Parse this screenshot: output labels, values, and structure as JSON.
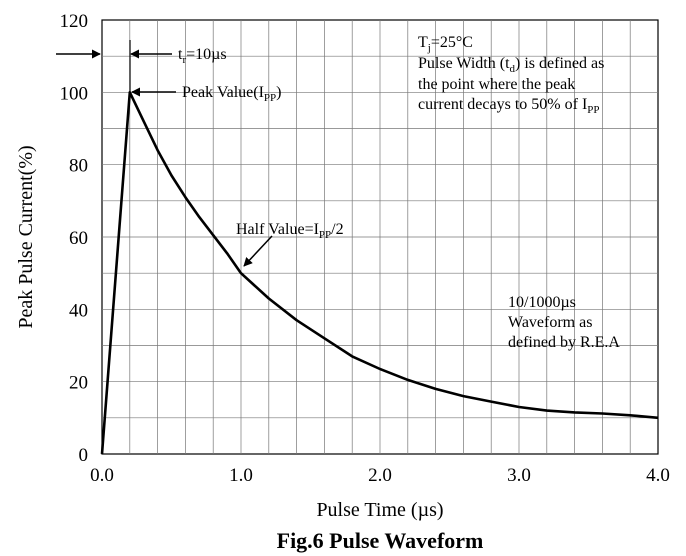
{
  "chart_data": {
    "type": "line",
    "title": "Fig.6 Pulse Waveform",
    "xlabel": "Pulse Time (µs)",
    "ylabel": "Peak Pulse Current(%)",
    "xlim": [
      0,
      4
    ],
    "ylim": [
      0,
      120
    ],
    "grid": true,
    "x_tick_labels": [
      "0.0",
      "1.0",
      "2.0",
      "3.0",
      "4.0"
    ],
    "y_tick_labels": [
      "0",
      "20",
      "40",
      "60",
      "80",
      "100",
      "120"
    ],
    "series": [
      {
        "x": [
          0.0,
          0.2,
          0.3,
          0.4,
          0.5,
          0.6,
          0.7,
          0.8,
          0.9,
          1.0,
          1.2,
          1.4,
          1.6,
          1.8,
          2.0,
          2.2,
          2.4,
          2.6,
          2.8,
          3.0,
          3.2,
          3.4,
          3.6,
          3.8,
          4.0
        ],
        "y": [
          0,
          100,
          92,
          84,
          77,
          71,
          65.5,
          60.5,
          55.5,
          50,
          43,
          37,
          32,
          27,
          23.5,
          20.5,
          18,
          16,
          14.5,
          13,
          12,
          11.5,
          11.2,
          10.7,
          10
        ]
      }
    ],
    "annotations": {
      "rise_time": {
        "t": "t",
        "sub": "r",
        "rest": "=10µs"
      },
      "peak": {
        "text": "Peak Value(I",
        "sub": "PP",
        "end": ")"
      },
      "half": {
        "text": "Half Value=I",
        "sub": "PP",
        "end": "/2"
      },
      "tj": {
        "t": "T",
        "sub": "j",
        "rest": "=25°C"
      },
      "pw_line1": {
        "text": "Pulse Width (t",
        "sub": "d",
        "end": ") is defined as"
      },
      "pw_line2": "the point where the peak",
      "pw_line3": {
        "text": "current decays to 50% of I",
        "sub": "PP"
      },
      "waveform": [
        "10/1000µs",
        "Waveform as",
        "defined by R.E.A"
      ]
    }
  }
}
